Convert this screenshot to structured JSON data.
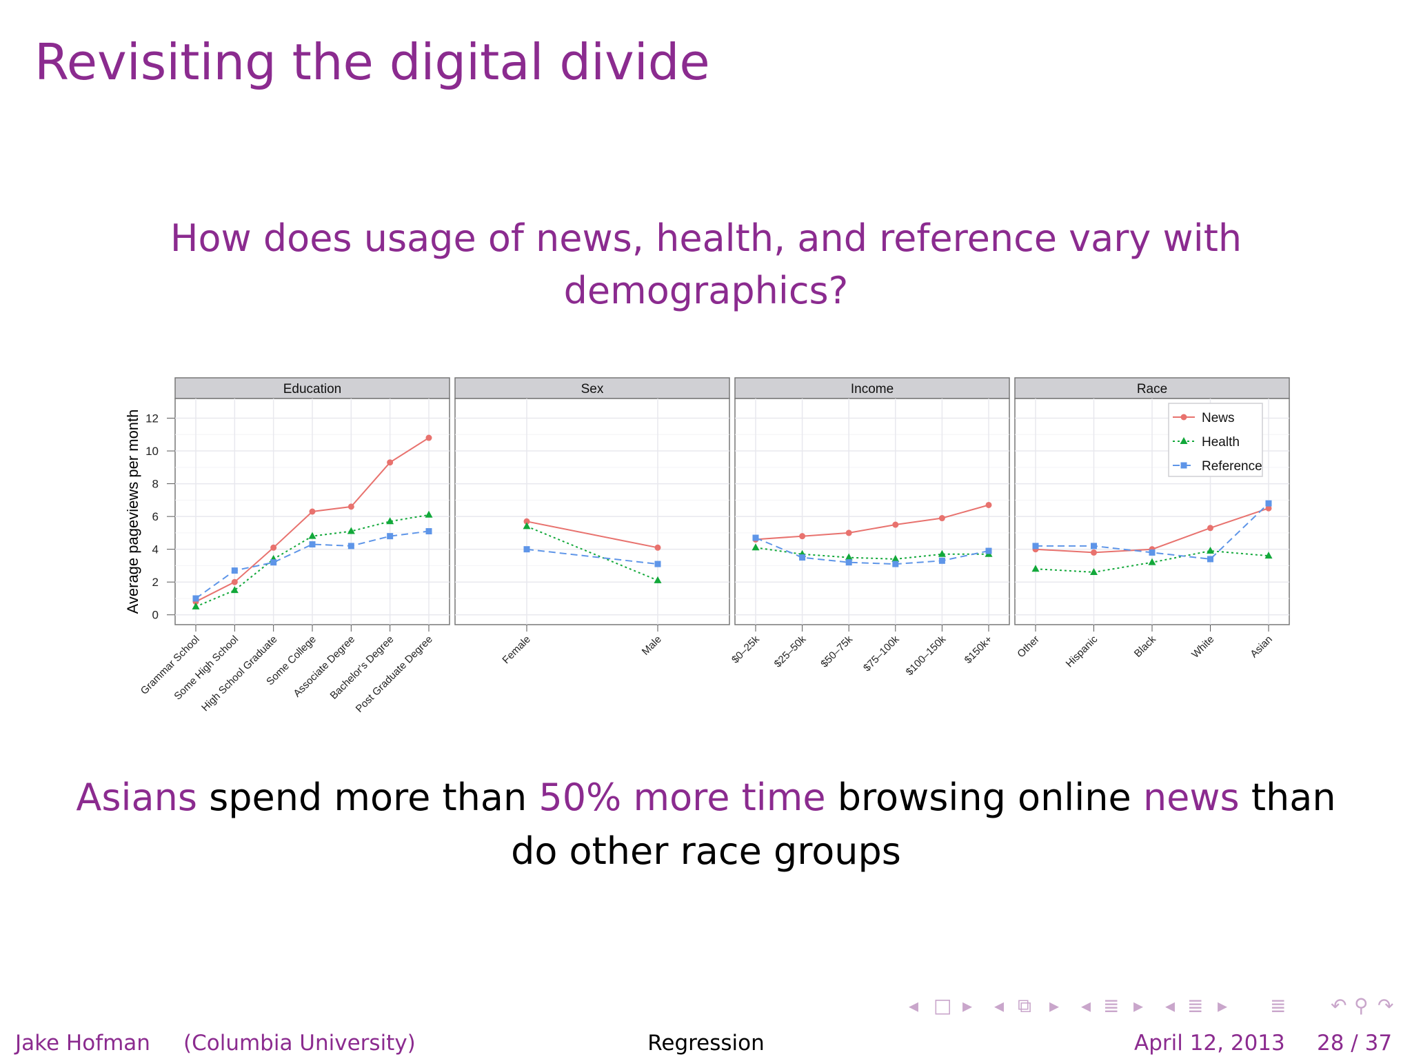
{
  "slide": {
    "title": "Revisiting the digital divide",
    "question_line1": "How does usage of news, health, and reference vary with",
    "question_line2": "demographics?",
    "conclusion": {
      "part1": "Asians",
      "part2": " spend more than ",
      "part3": "50% more time",
      "part4": " browsing online ",
      "part5": "news",
      "part6": " than",
      "line2": "do other race groups"
    }
  },
  "footer": {
    "author": "Jake Hofman",
    "institution": "(Columbia University)",
    "section": "Regression",
    "date": "April 12, 2013",
    "page": "28 / 37"
  },
  "nav": {
    "icons": [
      "nav-prev-frame-icon",
      "nav-frame-icon",
      "nav-next-frame-icon",
      "nav-prev-subsection-icon",
      "nav-subsection-icon",
      "nav-next-subsection-icon",
      "nav-prev-section-icon",
      "nav-section-icon",
      "nav-next-section-icon",
      "nav-prev-slide-icon",
      "nav-slide-icon",
      "nav-next-slide-icon",
      "nav-document-icon",
      "nav-back-icon",
      "nav-search-icon",
      "nav-forward-icon"
    ]
  },
  "chart_data": {
    "type": "line",
    "ylabel": "Average pageviews per month",
    "ylim": [
      -0.6,
      13.2
    ],
    "yticks": [
      0,
      2,
      4,
      6,
      8,
      10,
      12
    ],
    "grid": true,
    "legend": {
      "position": "top-right",
      "entries": [
        "News",
        "Health",
        "Reference"
      ]
    },
    "series_styles": [
      {
        "name": "News",
        "color": "#e8726e",
        "marker": "circle",
        "dash": "solid"
      },
      {
        "name": "Health",
        "color": "#12a83a",
        "marker": "triangle",
        "dash": "dotted"
      },
      {
        "name": "Reference",
        "color": "#5e95e8",
        "marker": "square",
        "dash": "dashed"
      }
    ],
    "panels": [
      {
        "title": "Education",
        "categories": [
          "Grammar School",
          "Some High School",
          "High School Graduate",
          "Some College",
          "Associate Degree",
          "Bachelor's Degree",
          "Post Graduate Degree"
        ],
        "series": [
          {
            "name": "News",
            "values": [
              0.8,
              2.0,
              4.1,
              6.3,
              6.6,
              9.3,
              10.8
            ]
          },
          {
            "name": "Health",
            "values": [
              0.5,
              1.5,
              3.4,
              4.8,
              5.1,
              5.7,
              6.1
            ]
          },
          {
            "name": "Reference",
            "values": [
              1.0,
              2.7,
              3.2,
              4.3,
              4.2,
              4.8,
              5.1
            ]
          }
        ]
      },
      {
        "title": "Sex",
        "categories": [
          "Female",
          "Male"
        ],
        "series": [
          {
            "name": "News",
            "values": [
              5.7,
              4.1
            ]
          },
          {
            "name": "Health",
            "values": [
              5.4,
              2.1
            ]
          },
          {
            "name": "Reference",
            "values": [
              4.0,
              3.1
            ]
          }
        ]
      },
      {
        "title": "Income",
        "categories": [
          "$0–25k",
          "$25–50k",
          "$50–75k",
          "$75–100k",
          "$100–150k",
          "$150k+"
        ],
        "series": [
          {
            "name": "News",
            "values": [
              4.6,
              4.8,
              5.0,
              5.5,
              5.9,
              6.7
            ]
          },
          {
            "name": "Health",
            "values": [
              4.1,
              3.7,
              3.5,
              3.4,
              3.7,
              3.7
            ]
          },
          {
            "name": "Reference",
            "values": [
              4.7,
              3.5,
              3.2,
              3.1,
              3.3,
              3.9
            ]
          }
        ]
      },
      {
        "title": "Race",
        "categories": [
          "Other",
          "Hispanic",
          "Black",
          "White",
          "Asian"
        ],
        "series": [
          {
            "name": "News",
            "values": [
              4.0,
              3.8,
              4.0,
              5.3,
              6.5
            ]
          },
          {
            "name": "Health",
            "values": [
              2.8,
              2.6,
              3.2,
              3.9,
              3.6
            ]
          },
          {
            "name": "Reference",
            "values": [
              4.2,
              4.2,
              3.8,
              3.4,
              6.8
            ]
          }
        ]
      }
    ]
  }
}
